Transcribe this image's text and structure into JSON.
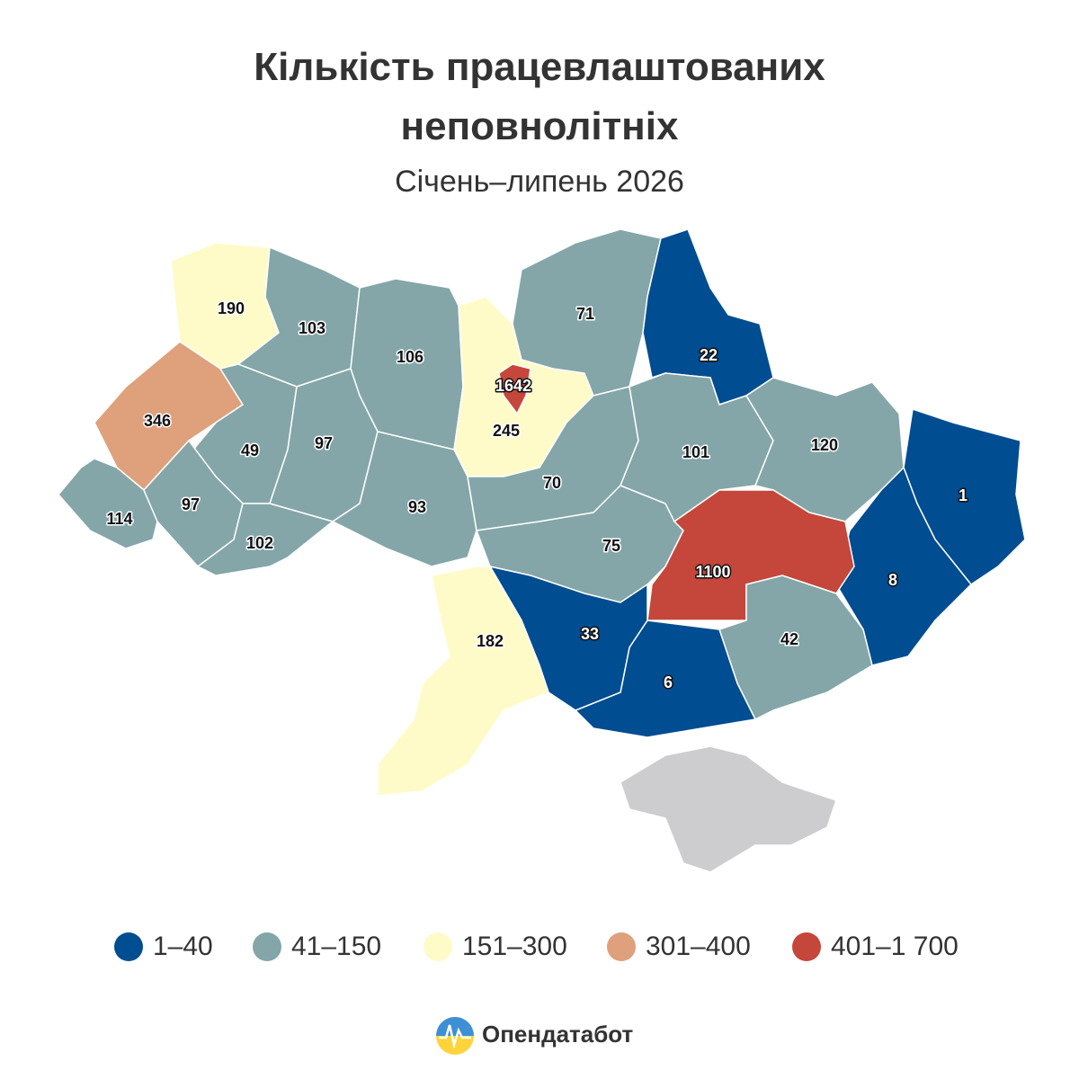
{
  "title": "Кількість працевлаштованих неповнолітніх",
  "subtitle": "Січень–липень 2026",
  "chart_data": {
    "type": "choropleth",
    "regions": [
      {
        "value": 190
      },
      {
        "value": 103
      },
      {
        "value": 106
      },
      {
        "value": 245
      },
      {
        "value": 1642
      },
      {
        "value": 71
      },
      {
        "value": 22
      },
      {
        "value": 346
      },
      {
        "value": 49
      },
      {
        "value": 97
      },
      {
        "value": 114
      },
      {
        "value": 97
      },
      {
        "value": 102
      },
      {
        "value": 93
      },
      {
        "value": 70
      },
      {
        "value": 75
      },
      {
        "value": 101
      },
      {
        "value": 120
      },
      {
        "value": 1
      },
      {
        "value": 8
      },
      {
        "value": 1100
      },
      {
        "value": 42
      },
      {
        "value": 6
      },
      {
        "value": 33
      },
      {
        "value": 182
      }
    ],
    "bins": [
      {
        "min": 1,
        "max": 40,
        "label": "1–40",
        "color": "#004d91"
      },
      {
        "min": 41,
        "max": 150,
        "label": "41–150",
        "color": "#84a6a8"
      },
      {
        "min": 151,
        "max": 300,
        "label": "151–300",
        "color": "#fffbc8"
      },
      {
        "min": 301,
        "max": 400,
        "label": "301–400",
        "color": "#dfa07c"
      },
      {
        "min": 401,
        "max": 1700,
        "label": "401–1 700",
        "color": "#c5463a"
      }
    ]
  },
  "brand": "Опендатабот"
}
